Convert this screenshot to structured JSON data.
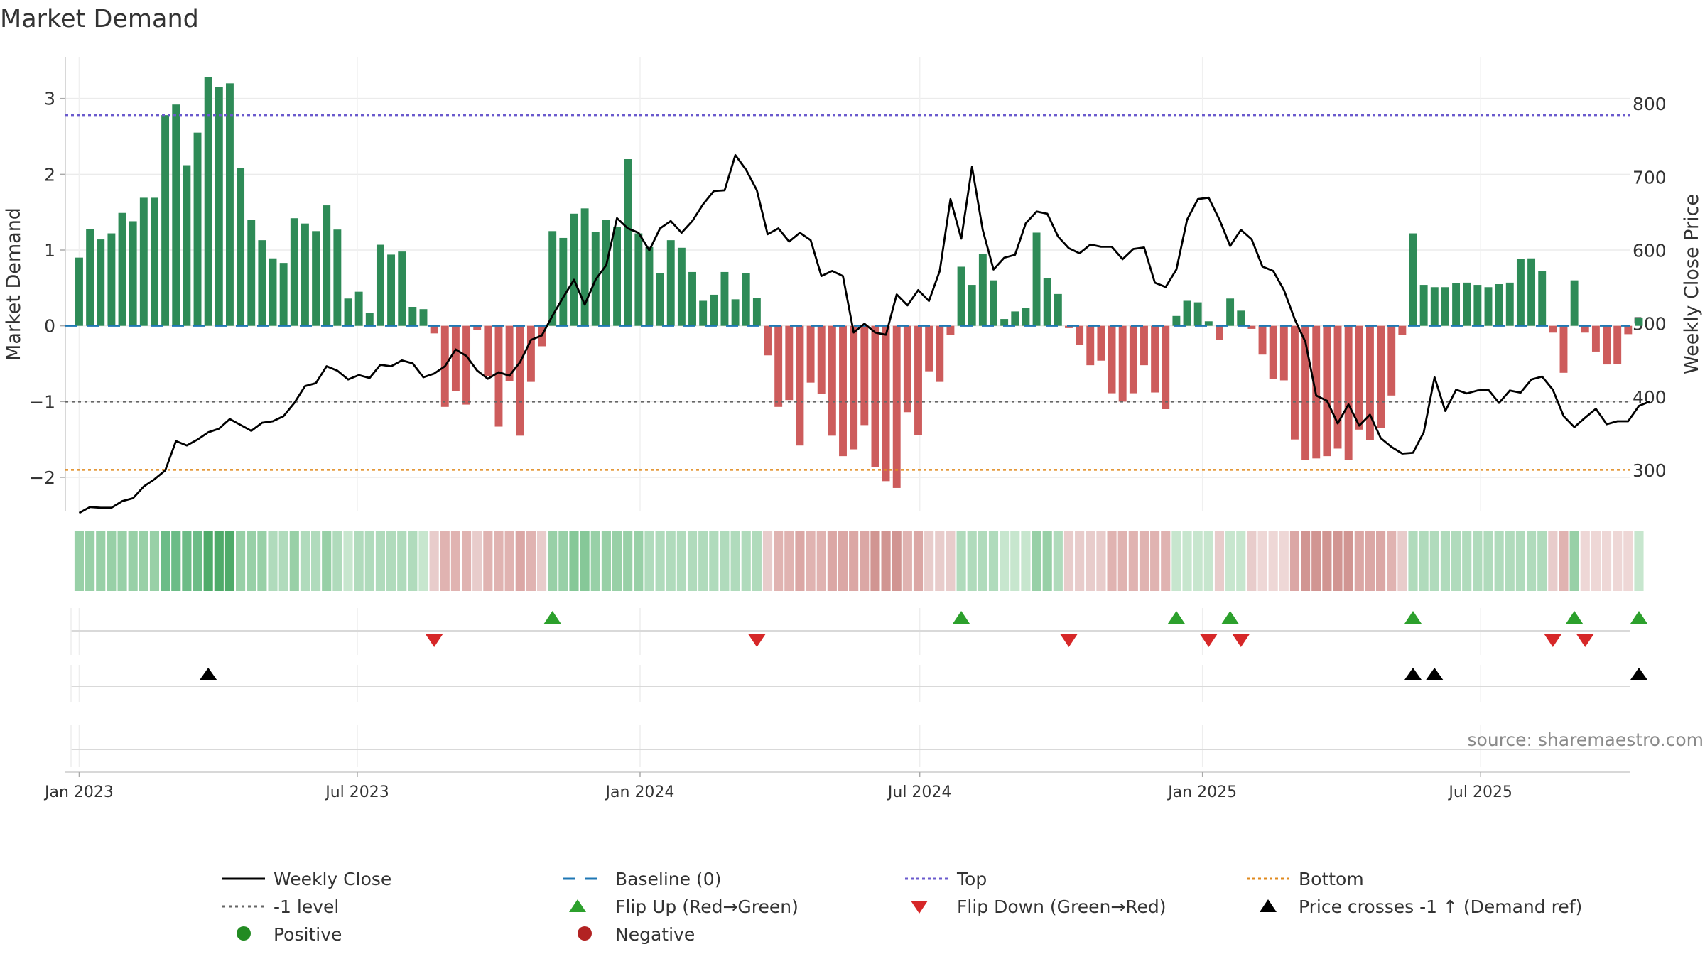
{
  "chart_data": {
    "type": "bar",
    "title": "Market Demand",
    "ylabel_left": "Market Demand",
    "ylabel_right": "Weekly Close Price",
    "source": "source: sharemaestro.com",
    "x_start": "2023-01-01",
    "week_days": 7,
    "xlim_days": [
      -9,
      1009
    ],
    "ylim_left": [
      -2.45,
      3.55
    ],
    "ylim_right": [
      244,
      864
    ],
    "yticks_left": [
      3,
      2,
      1,
      0,
      -1,
      -2
    ],
    "ytick_labels_left": [
      "3",
      "2",
      "1",
      "0",
      "−1",
      "−2"
    ],
    "yticks_right": [
      800,
      700,
      600,
      500,
      400,
      300
    ],
    "ytick_labels_right": [
      "800",
      "700",
      "600",
      "500",
      "400",
      "300"
    ],
    "x_ticks": [
      {
        "day": 0,
        "label": "Jan 2023"
      },
      {
        "day": 181,
        "label": "Jul 2023"
      },
      {
        "day": 365,
        "label": "Jan 2024"
      },
      {
        "day": 547,
        "label": "Jul 2024"
      },
      {
        "day": 731,
        "label": "Jan 2025"
      },
      {
        "day": 912,
        "label": "Jul 2025"
      }
    ],
    "levels": {
      "top": 2.78,
      "minus_one": -1.0,
      "bottom": -1.9,
      "baseline": 0
    },
    "colors": {
      "positive": "#2e8b57",
      "negative": "#cd5c5c",
      "weekly_close": "#000000",
      "baseline": "#1f77b4",
      "top": "#6a5acd",
      "minus_one": "#666666",
      "bottom": "#e08a1e",
      "flip_up": "#2ca02c",
      "flip_down": "#d62728",
      "cross": "#000000",
      "legend_positive": "#228b22",
      "legend_negative": "#b22222"
    },
    "demand": [
      0.9,
      1.28,
      1.14,
      1.22,
      1.49,
      1.38,
      1.69,
      1.69,
      2.78,
      2.92,
      2.12,
      2.55,
      3.28,
      3.15,
      3.2,
      2.08,
      1.4,
      1.13,
      0.89,
      0.83,
      1.42,
      1.35,
      1.25,
      1.59,
      1.27,
      0.36,
      0.45,
      0.17,
      1.07,
      0.94,
      0.98,
      0.25,
      0.22,
      -0.1,
      -1.07,
      -0.86,
      -1.04,
      -0.05,
      -0.66,
      -1.33,
      -0.73,
      -1.45,
      -0.74,
      -0.27,
      1.25,
      1.16,
      1.48,
      1.55,
      1.24,
      1.4,
      1.3,
      2.2,
      1.22,
      1.04,
      0.7,
      1.13,
      1.03,
      0.71,
      0.33,
      0.41,
      0.71,
      0.35,
      0.7,
      0.37,
      -0.39,
      -1.07,
      -0.98,
      -1.58,
      -0.75,
      -0.9,
      -1.45,
      -1.72,
      -1.63,
      -1.31,
      -1.86,
      -2.05,
      -2.14,
      -1.14,
      -1.44,
      -0.6,
      -0.74,
      -0.12,
      0.78,
      0.54,
      0.95,
      0.6,
      0.09,
      0.19,
      0.24,
      1.23,
      0.63,
      0.42,
      -0.03,
      -0.25,
      -0.52,
      -0.46,
      -0.89,
      -1.0,
      -0.89,
      -0.52,
      -0.88,
      -1.1,
      0.13,
      0.33,
      0.31,
      0.06,
      -0.19,
      0.36,
      0.2,
      -0.04,
      -0.38,
      -0.7,
      -0.72,
      -1.5,
      -1.77,
      -1.75,
      -1.72,
      -1.62,
      -1.77,
      -1.37,
      -1.51,
      -1.35,
      -0.92,
      -0.12,
      1.22,
      0.54,
      0.51,
      0.51,
      0.56,
      0.57,
      0.54,
      0.51,
      0.55,
      0.57,
      0.88,
      0.89,
      0.72,
      -0.09,
      -0.62,
      0.6,
      -0.09,
      -0.34,
      -0.51,
      -0.5,
      -0.11,
      0.1
    ],
    "weekly_close": [
      242,
      250,
      249,
      249,
      258,
      262,
      278,
      288,
      300,
      340,
      334,
      342,
      352,
      357,
      370,
      362,
      354,
      365,
      367,
      374,
      392,
      415,
      419,
      442,
      436,
      424,
      430,
      426,
      444,
      442,
      450,
      446,
      427,
      432,
      442,
      465,
      456,
      436,
      425,
      434,
      429,
      448,
      478,
      484,
      511,
      536,
      560,
      526,
      560,
      580,
      644,
      630,
      624,
      600,
      630,
      640,
      624,
      640,
      663,
      681,
      682,
      730,
      710,
      682,
      622,
      630,
      612,
      624,
      614,
      565,
      572,
      565,
      488,
      500,
      488,
      485,
      540,
      525,
      546,
      531,
      572,
      670,
      616,
      714,
      628,
      574,
      590,
      594,
      637,
      653,
      650,
      619,
      603,
      596,
      608,
      605,
      605,
      588,
      602,
      604,
      556,
      550,
      574,
      642,
      670,
      672,
      642,
      606,
      628,
      615,
      578,
      572,
      546,
      506,
      475,
      402,
      395,
      364,
      390,
      361,
      376,
      344,
      332,
      323,
      324,
      352,
      427,
      381,
      410,
      405,
      409,
      410,
      392,
      409,
      406,
      424,
      428,
      410,
      374,
      359,
      372,
      384,
      363,
      367,
      367,
      388,
      394
    ]
  },
  "heat_strip": {
    "colors": [
      "#98d0a7",
      "#98d0a7",
      "#98d0a7",
      "#98d0a7",
      "#98d0a7",
      "#98d0a7",
      "#98d0a7",
      "#98d0a7",
      "#6cbc87",
      "#6cbc87",
      "#6cbc87",
      "#6cbc87",
      "#4fab6a",
      "#4fab6a",
      "#4fab6a",
      "#98d0a7",
      "#98d0a7",
      "#98d0a7",
      "#b0dbbc",
      "#b0dbbc",
      "#98d0a7",
      "#b0dbbc",
      "#b0dbbc",
      "#98d0a7",
      "#b0dbbc",
      "#c7e6ce",
      "#b0dbbc",
      "#b0dbbc",
      "#b0dbbc",
      "#b0dbbc",
      "#b0dbbc",
      "#b0dbbc",
      "#c7e6ce",
      "#e8cccb",
      "#e0b3b1",
      "#e0b3b1",
      "#e0b3b1",
      "#e8cccb",
      "#e0b3b1",
      "#e0b3b1",
      "#e0b3b1",
      "#dba7a5",
      "#e0b3b1",
      "#e8cccb",
      "#98d0a7",
      "#98d0a7",
      "#86c898",
      "#86c898",
      "#98d0a7",
      "#98d0a7",
      "#98d0a7",
      "#98d0a7",
      "#98d0a7",
      "#b0dbbc",
      "#b0dbbc",
      "#b0dbbc",
      "#b0dbbc",
      "#b0dbbc",
      "#b0dbbc",
      "#b0dbbc",
      "#b0dbbc",
      "#b0dbbc",
      "#b0dbbc",
      "#b0dbbc",
      "#e8cccb",
      "#e0b3b1",
      "#e0b3b1",
      "#dba7a5",
      "#e0b3b1",
      "#e0b3b1",
      "#dba7a5",
      "#dba7a5",
      "#dba7a5",
      "#dba7a5",
      "#d19592",
      "#d19592",
      "#d19592",
      "#e0b3b1",
      "#dba7a5",
      "#e8cccb",
      "#e8cccb",
      "#e8cccb",
      "#b0dbbc",
      "#b0dbbc",
      "#b0dbbc",
      "#b0dbbc",
      "#c7e6ce",
      "#c7e6ce",
      "#c7e6ce",
      "#98d0a7",
      "#98d0a7",
      "#b0dbbc",
      "#e8cccb",
      "#e8cccb",
      "#e8cccb",
      "#e8cccb",
      "#e0b3b1",
      "#e0b3b1",
      "#e0b3b1",
      "#e0b3b1",
      "#e0b3b1",
      "#e0b3b1",
      "#c7e6ce",
      "#c7e6ce",
      "#c7e6ce",
      "#c7e6ce",
      "#e8cccb",
      "#c7e6ce",
      "#c7e6ce",
      "#e8cccb",
      "#eed7d6",
      "#eed7d6",
      "#eed7d6",
      "#dba7a5",
      "#d19592",
      "#d19592",
      "#d19592",
      "#d19592",
      "#d19592",
      "#dba7a5",
      "#dba7a5",
      "#dba7a5",
      "#e0b3b1",
      "#e8cccb",
      "#b0dbbc",
      "#b0dbbc",
      "#b0dbbc",
      "#b0dbbc",
      "#b0dbbc",
      "#b0dbbc",
      "#b0dbbc",
      "#b0dbbc",
      "#b0dbbc",
      "#b0dbbc",
      "#b0dbbc",
      "#b0dbbc",
      "#b0dbbc",
      "#e8cccb",
      "#e0b3b1",
      "#98d0a7",
      "#eed7d6",
      "#eed7d6",
      "#eed7d6",
      "#eed7d6",
      "#eed7d6",
      "#c7e6ce"
    ]
  },
  "events": {
    "flip_up_weeks": [
      44,
      82,
      102,
      107,
      124,
      139,
      145
    ],
    "flip_down_weeks": [
      33,
      63,
      92,
      105,
      108,
      137,
      140
    ],
    "cross_weeks": [
      12,
      124,
      126,
      145
    ]
  },
  "legend": {
    "items": [
      {
        "id": "weekly-close",
        "symbol": "line",
        "label": "Weekly Close"
      },
      {
        "id": "baseline",
        "symbol": "dash",
        "label": "Baseline (0)"
      },
      {
        "id": "top",
        "symbol": "dot-line-top",
        "label": "Top"
      },
      {
        "id": "bottom",
        "symbol": "dot-line-bottom",
        "label": "Bottom"
      },
      {
        "id": "minus-one-level",
        "symbol": "dot-line-gray",
        "label": "-1 level"
      },
      {
        "id": "flip-up",
        "symbol": "tri-up-green",
        "label": "Flip Up (Red→Green)"
      },
      {
        "id": "flip-down",
        "symbol": "tri-down-red",
        "label": "Flip Down (Green→Red)"
      },
      {
        "id": "price-cross",
        "symbol": "tri-up-black",
        "label": "Price crosses -1 ↑ (Demand ref)"
      },
      {
        "id": "positive",
        "symbol": "dot-green",
        "label": "Positive"
      },
      {
        "id": "negative",
        "symbol": "dot-red",
        "label": "Negative"
      }
    ]
  }
}
